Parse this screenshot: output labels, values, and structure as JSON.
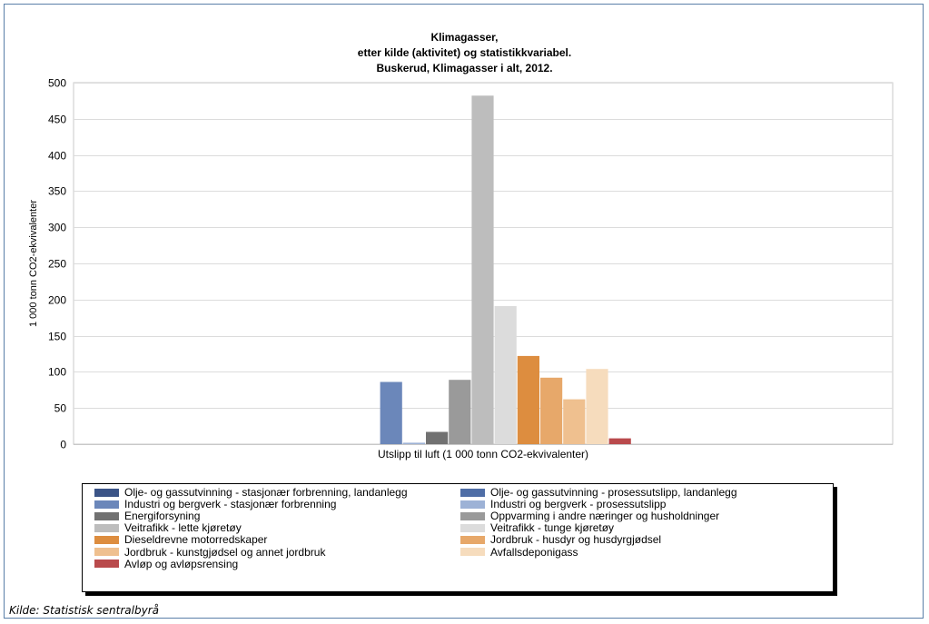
{
  "chart_data": {
    "type": "bar",
    "title": [
      "Klimagasser,",
      "etter kilde (aktivitet) og statistikkvariabel.",
      "Buskerud, Klimagasser i alt, 2012."
    ],
    "xlabel": "Utslipp til luft (1 000 tonn CO2-ekvivalenter)",
    "ylabel": "1 000 tonn CO2-ekvivalenter",
    "ylim": [
      0,
      500
    ],
    "yticks": [
      0,
      50,
      100,
      150,
      200,
      250,
      300,
      350,
      400,
      450,
      500
    ],
    "grid": true,
    "legend_position": "bottom",
    "categories": [
      "Utslipp til luft (1 000 tonn CO2-ekvivalenter)"
    ],
    "series": [
      {
        "name": "Olje- og gassutvinning - stasjonær forbrenning, landanlegg",
        "values": [
          0
        ],
        "color": "#3b5487"
      },
      {
        "name": "Olje- og gassutvinning - prosessutslipp, landanlegg",
        "values": [
          0
        ],
        "color": "#4f6ea6"
      },
      {
        "name": "Industri og bergverk - stasjonær forbrenning",
        "values": [
          86
        ],
        "color": "#6b87ba"
      },
      {
        "name": "Industri og bergverk - prosessutslipp",
        "values": [
          2
        ],
        "color": "#9db2d6"
      },
      {
        "name": "Energiforsyning",
        "values": [
          17
        ],
        "color": "#717171"
      },
      {
        "name": "Oppvarming i andre næringer og husholdninger",
        "values": [
          89
        ],
        "color": "#9a9a9a"
      },
      {
        "name": "Veitrafikk - lette kjøretøy",
        "values": [
          482
        ],
        "color": "#bdbdbd"
      },
      {
        "name": "Veitrafikk - tunge kjøretøy",
        "values": [
          191
        ],
        "color": "#dcdcdc"
      },
      {
        "name": "Dieseldrevne motorredskaper",
        "values": [
          122
        ],
        "color": "#dd8d3f"
      },
      {
        "name": "Jordbruk - husdyr og husdyrgjødsel",
        "values": [
          92
        ],
        "color": "#e7a86a"
      },
      {
        "name": "Jordbruk - kunstgjødsel og annet jordbruk",
        "values": [
          62
        ],
        "color": "#efc08f"
      },
      {
        "name": "Avfallsdeponigass",
        "values": [
          104
        ],
        "color": "#f6dcbd"
      },
      {
        "name": "Avløp og avløpsrensing",
        "values": [
          8
        ],
        "color": "#b94a4c"
      }
    ]
  },
  "source": "Kilde: Statistisk sentralbyrå"
}
